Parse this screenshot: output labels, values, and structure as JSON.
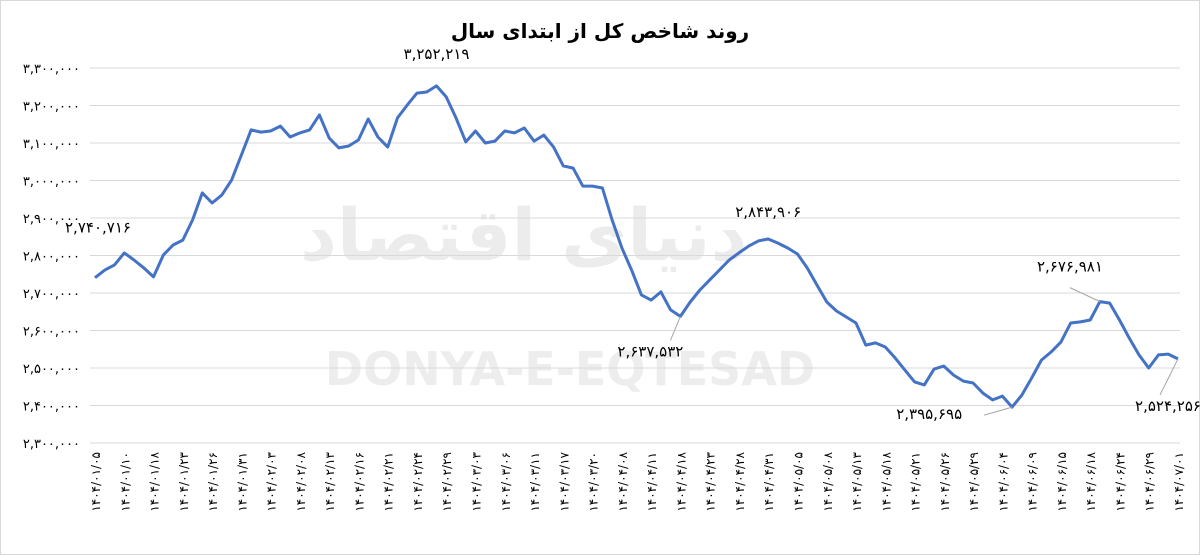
{
  "chart_data": {
    "type": "line",
    "title": "روند شاخص کل از ابتدای سال",
    "watermark": "DONYA-E-EQTESAD",
    "watermark_fa": "دنیای اقتصاد",
    "categories": [
      "۱۴۰۴/۰۱/۰۵",
      null,
      null,
      "۱۴۰۴/۰۱/۱۰",
      null,
      null,
      "۱۴۰۴/۰۱/۱۸",
      null,
      null,
      "۱۴۰۴/۰۱/۲۳",
      null,
      null,
      "۱۴۰۴/۰۱/۲۶",
      null,
      null,
      "۱۴۰۴/۰۱/۳۱",
      null,
      null,
      "۱۴۰۴/۰۲/۰۳",
      null,
      null,
      "۱۴۰۴/۰۲/۰۸",
      null,
      null,
      "۱۴۰۴/۰۲/۱۳",
      null,
      null,
      "۱۴۰۴/۰۲/۱۶",
      null,
      null,
      "۱۴۰۴/۰۲/۲۱",
      null,
      null,
      "۱۴۰۴/۰۲/۲۴",
      null,
      null,
      "۱۴۰۴/۰۲/۲۹",
      null,
      null,
      "۱۴۰۴/۰۳/۰۳",
      null,
      null,
      "۱۴۰۴/۰۳/۰۶",
      null,
      null,
      "۱۴۰۴/۰۳/۱۱",
      null,
      null,
      "۱۴۰۴/۰۳/۱۷",
      null,
      null,
      "۱۴۰۴/۰۳/۲۰",
      null,
      null,
      "۱۴۰۴/۰۴/۰۸",
      null,
      null,
      "۱۴۰۴/۰۴/۱۱",
      null,
      null,
      "۱۴۰۴/۰۴/۱۸",
      null,
      null,
      "۱۴۰۴/۰۴/۲۳",
      null,
      null,
      "۱۴۰۴/۰۴/۲۸",
      null,
      null,
      "۱۴۰۴/۰۴/۳۱",
      null,
      null,
      "۱۴۰۴/۰۵/۰۵",
      null,
      null,
      "۱۴۰۴/۰۵/۰۸",
      null,
      null,
      "۱۴۰۴/۰۵/۱۳",
      null,
      null,
      "۱۴۰۴/۰۵/۱۸",
      null,
      null,
      "۱۴۰۴/۰۵/۲۱",
      null,
      null,
      "۱۴۰۴/۰۵/۲۶",
      null,
      null,
      "۱۴۰۴/۰۵/۲۹",
      null,
      null,
      "۱۴۰۴/۰۶/۰۴",
      null,
      null,
      "۱۴۰۴/۰۶/۰۹",
      null,
      null,
      "۱۴۰۴/۰۶/۱۵",
      null,
      null,
      "۱۴۰۴/۰۶/۱۸",
      null,
      null,
      "۱۴۰۴/۰۶/۲۴",
      null,
      null,
      "۱۴۰۴/۰۶/۲۹",
      null,
      null,
      "۱۴۰۴/۰۷/۰۱"
    ],
    "values": [
      2740716,
      2761000,
      2775000,
      2807000,
      2788000,
      2767000,
      2743000,
      2801000,
      2828000,
      2841000,
      2895000,
      2967000,
      2940000,
      2961000,
      3001000,
      3068000,
      3135000,
      3129000,
      3132000,
      3145000,
      3116000,
      3127000,
      3135000,
      3175000,
      3113000,
      3087000,
      3092000,
      3108000,
      3164000,
      3116000,
      3089000,
      3167000,
      3201000,
      3233000,
      3236000,
      3252219,
      3223000,
      3167000,
      3103000,
      3132000,
      3100000,
      3105000,
      3132000,
      3127000,
      3140000,
      3105000,
      3121000,
      3089000,
      3039000,
      3033000,
      2985000,
      2985000,
      2980000,
      2895000,
      2820000,
      2761000,
      2695000,
      2681000,
      2703000,
      2655000,
      2637532,
      2676000,
      2708000,
      2735000,
      2761000,
      2788000,
      2807000,
      2825000,
      2839000,
      2843906,
      2833000,
      2820000,
      2804000,
      2767000,
      2721000,
      2676000,
      2652000,
      2636000,
      2620000,
      2561000,
      2567000,
      2556000,
      2527000,
      2495000,
      2463000,
      2455000,
      2497000,
      2505000,
      2481000,
      2465000,
      2460000,
      2433000,
      2415000,
      2425000,
      2395695,
      2428000,
      2473000,
      2521000,
      2543000,
      2569000,
      2620000,
      2623000,
      2628000,
      2676981,
      2673000,
      2628000,
      2580000,
      2535000,
      2500000,
      2535000,
      2537000,
      2524256
    ],
    "value_labels": [
      "۲,۷۴۰,۷۱۶",
      null,
      null,
      null,
      null,
      null,
      null,
      null,
      null,
      null,
      null,
      null,
      null,
      null,
      null,
      null,
      null,
      null,
      null,
      null,
      null,
      null,
      null,
      null,
      null,
      null,
      null,
      null,
      null,
      null,
      null,
      null,
      null,
      null,
      null,
      "۳,۲۵۲,۲۱۹",
      null,
      null,
      null,
      null,
      null,
      null,
      null,
      null,
      null,
      null,
      null,
      null,
      null,
      null,
      null,
      null,
      null,
      null,
      null,
      null,
      null,
      null,
      null,
      null,
      "۲,۶۳۷,۵۳۲",
      null,
      null,
      null,
      null,
      null,
      null,
      null,
      null,
      "۲,۸۴۳,۹۰۶",
      null,
      null,
      null,
      null,
      null,
      null,
      null,
      null,
      null,
      null,
      null,
      null,
      null,
      null,
      null,
      null,
      null,
      null,
      null,
      null,
      null,
      null,
      null,
      null,
      "۲,۳۹۵,۶۹۵",
      null,
      null,
      null,
      null,
      null,
      null,
      null,
      null,
      "۲,۶۷۶,۹۸۱",
      null,
      null,
      null,
      null,
      null,
      null,
      null,
      "۲,۵۲۴,۲۵۶"
    ],
    "color": "#4472c4",
    "ylim": [
      2300000,
      3300000
    ],
    "yticks": [
      {
        "value": 2300000,
        "label": "۲,۳۰۰,۰۰۰"
      },
      {
        "value": 2400000,
        "label": "۲,۴۰۰,۰۰۰"
      },
      {
        "value": 2500000,
        "label": "۲,۵۰۰,۰۰۰"
      },
      {
        "value": 2600000,
        "label": "۲,۶۰۰,۰۰۰"
      },
      {
        "value": 2700000,
        "label": "۲,۷۰۰,۰۰۰"
      },
      {
        "value": 2800000,
        "label": "۲,۸۰۰,۰۰۰"
      },
      {
        "value": 2900000,
        "label": "۲,۹۰۰,۰۰۰"
      },
      {
        "value": 3000000,
        "label": "۳,۰۰۰,۰۰۰"
      },
      {
        "value": 3100000,
        "label": "۳,۱۰۰,۰۰۰"
      },
      {
        "value": 3200000,
        "label": "۳,۲۰۰,۰۰۰"
      },
      {
        "value": 3300000,
        "label": "۳,۳۰۰,۰۰۰"
      }
    ],
    "grid": true
  }
}
